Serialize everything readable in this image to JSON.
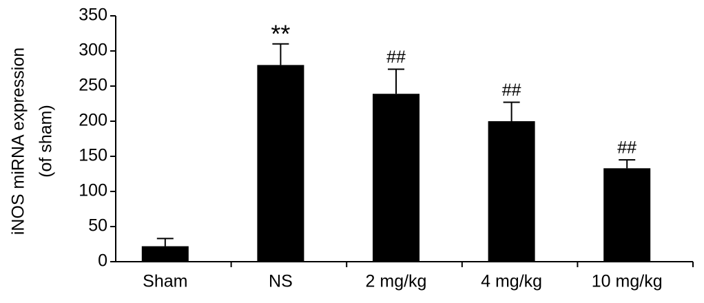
{
  "chart_data": {
    "type": "bar",
    "y_label": [
      "iNOS miRNA expression",
      "(of sham)"
    ],
    "categories": [
      "Sham",
      "NS",
      "2 mg/kg",
      "4 mg/kg",
      "10 mg/kg"
    ],
    "values": [
      22,
      280,
      239,
      200,
      133
    ],
    "errors": [
      11,
      30,
      35,
      27,
      12
    ],
    "annotations": [
      null,
      "**",
      "##",
      "##",
      "##"
    ],
    "color": "#000000",
    "ylim": [
      0,
      350
    ],
    "yticks": [
      0,
      50,
      100,
      150,
      200,
      250,
      300,
      350
    ],
    "grid": false
  }
}
